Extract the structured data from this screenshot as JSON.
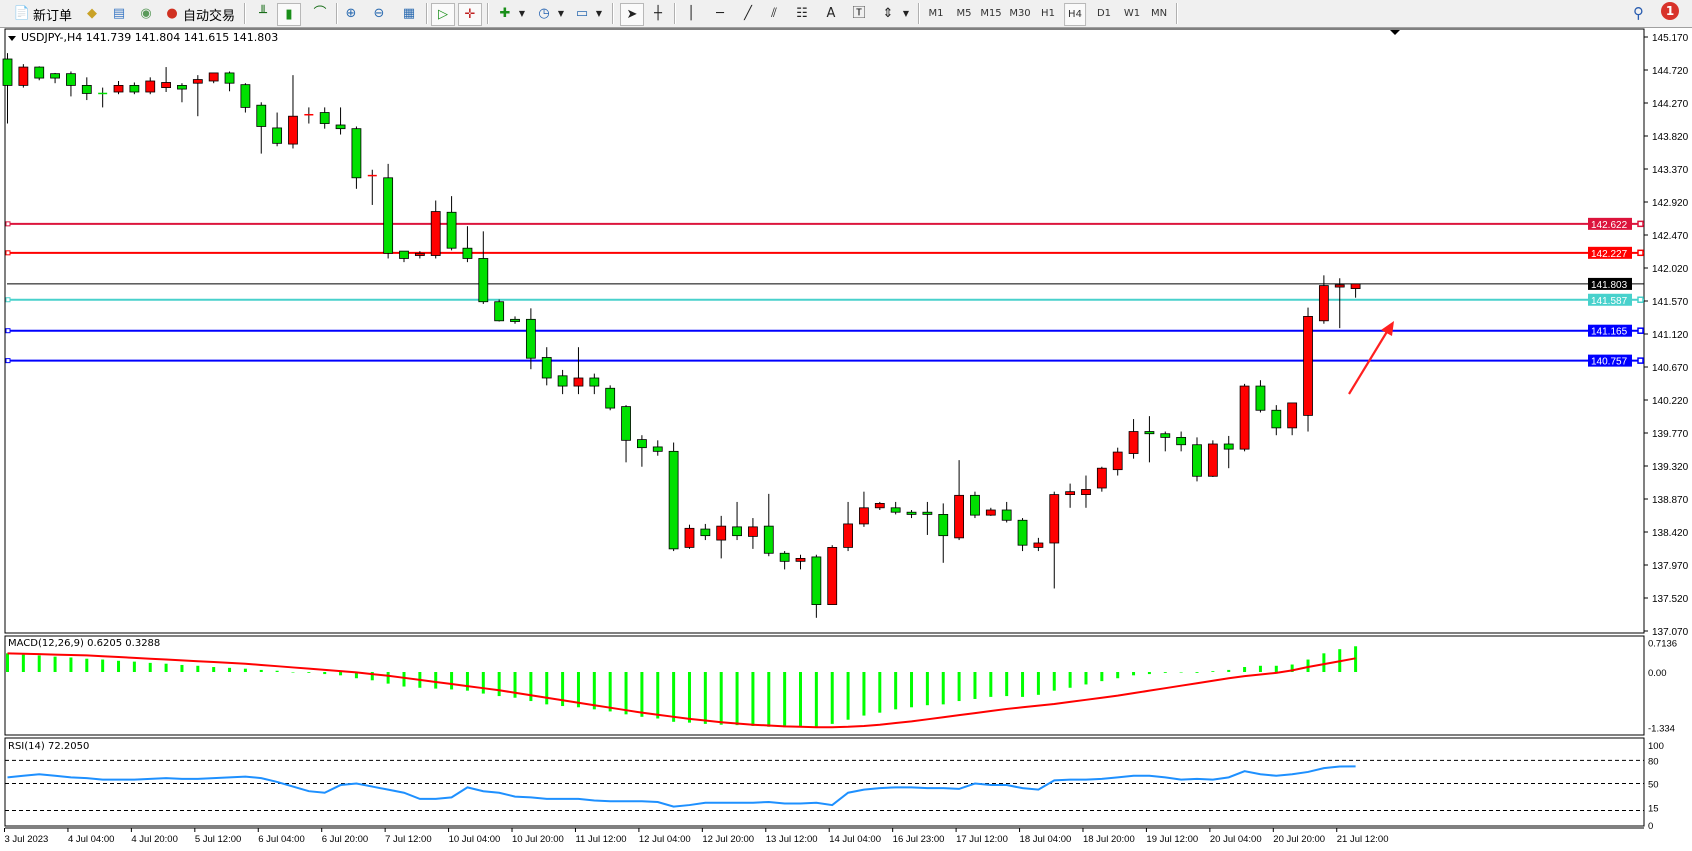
{
  "toolbar": {
    "new_order_label": "新订单",
    "auto_trading_label": "自动交易",
    "periods": [
      "M1",
      "M5",
      "M15",
      "M30",
      "H1",
      "H4",
      "D1",
      "W1",
      "MN"
    ],
    "active_period": "H4",
    "notification_count": "1",
    "icons": [
      "new-order-icon",
      "market-watch-icon",
      "data-window-icon",
      "navigator-icon",
      "auto-trading-icon",
      "bar-chart-icon",
      "candlestick-chart-icon",
      "line-chart-icon",
      "zoom-in-icon",
      "zoom-out-icon",
      "tile-windows-icon",
      "chart-shift-icon",
      "auto-scroll-icon",
      "indicators-icon",
      "periods-icon",
      "templates-icon",
      "cursor-icon",
      "crosshair-icon",
      "vertical-line-icon",
      "horizontal-line-icon",
      "trendline-icon",
      "fibonacci-fan-icon",
      "fibonacci-retracement-icon",
      "text-icon",
      "text-label-icon",
      "arrows-icon",
      "search-icon",
      "notification-icon"
    ]
  },
  "chart_header": "USDJPY-,H4  141.739 141.804 141.615 141.803",
  "chart_data": {
    "type": "candlestick",
    "symbol": "USDJPY-",
    "timeframe": "H4",
    "bull_color": "#ff0000",
    "bear_color": "#00e000",
    "ohlc": [
      [
        144.87,
        144.95,
        143.99,
        144.51
      ],
      [
        144.51,
        144.8,
        144.48,
        144.76
      ],
      [
        144.76,
        144.77,
        144.58,
        144.61
      ],
      [
        144.67,
        144.68,
        144.54,
        144.61
      ],
      [
        144.67,
        144.7,
        144.36,
        144.51
      ],
      [
        144.51,
        144.62,
        144.31,
        144.4
      ],
      [
        144.4,
        144.48,
        144.21,
        144.39
      ],
      [
        144.42,
        144.57,
        144.39,
        144.51
      ],
      [
        144.51,
        144.55,
        144.39,
        144.42
      ],
      [
        144.42,
        144.62,
        144.39,
        144.57
      ],
      [
        144.48,
        144.76,
        144.42,
        144.55
      ],
      [
        144.51,
        144.54,
        144.28,
        144.46
      ],
      [
        144.54,
        144.65,
        144.09,
        144.59
      ],
      [
        144.57,
        144.68,
        144.54,
        144.68
      ],
      [
        144.68,
        144.7,
        144.43,
        144.54
      ],
      [
        144.52,
        144.54,
        144.14,
        144.21
      ],
      [
        144.24,
        144.28,
        143.58,
        143.95
      ],
      [
        143.93,
        144.14,
        143.68,
        143.72
      ],
      [
        143.71,
        144.65,
        143.65,
        144.09
      ],
      [
        144.09,
        144.21,
        143.99,
        144.11
      ],
      [
        144.14,
        144.21,
        143.92,
        143.99
      ],
      [
        143.97,
        144.21,
        143.84,
        143.92
      ],
      [
        143.92,
        143.95,
        143.1,
        143.25
      ],
      [
        143.27,
        143.36,
        142.88,
        143.28
      ],
      [
        143.25,
        143.44,
        142.15,
        142.22
      ],
      [
        142.25,
        142.25,
        142.1,
        142.15
      ],
      [
        142.19,
        142.25,
        142.15,
        142.22
      ],
      [
        142.19,
        142.94,
        142.15,
        142.79
      ],
      [
        142.78,
        143.0,
        142.26,
        142.29
      ],
      [
        142.29,
        142.59,
        142.1,
        142.15
      ],
      [
        142.15,
        142.52,
        141.53,
        141.56
      ],
      [
        141.56,
        141.59,
        141.29,
        141.3
      ],
      [
        141.32,
        141.36,
        141.26,
        141.29
      ],
      [
        141.32,
        141.47,
        140.64,
        140.79
      ],
      [
        140.8,
        140.94,
        140.42,
        140.52
      ],
      [
        140.55,
        140.63,
        140.3,
        140.41
      ],
      [
        140.41,
        140.94,
        140.3,
        140.52
      ],
      [
        140.52,
        140.58,
        140.3,
        140.41
      ],
      [
        140.38,
        140.42,
        140.08,
        140.11
      ],
      [
        140.13,
        140.15,
        139.37,
        139.67
      ],
      [
        139.68,
        139.74,
        139.31,
        139.57
      ],
      [
        139.58,
        139.67,
        139.46,
        139.52
      ],
      [
        139.52,
        139.64,
        138.16,
        138.19
      ],
      [
        138.21,
        138.52,
        138.19,
        138.47
      ],
      [
        138.46,
        138.53,
        138.31,
        138.37
      ],
      [
        138.31,
        138.64,
        138.06,
        138.5
      ],
      [
        138.49,
        138.83,
        138.31,
        138.37
      ],
      [
        138.36,
        138.61,
        138.19,
        138.49
      ],
      [
        138.5,
        138.94,
        138.09,
        138.13
      ],
      [
        138.13,
        138.16,
        137.91,
        138.02
      ],
      [
        138.02,
        138.11,
        137.91,
        138.06
      ],
      [
        138.08,
        138.11,
        137.25,
        137.43
      ],
      [
        137.43,
        138.24,
        137.43,
        138.21
      ],
      [
        138.21,
        138.83,
        138.16,
        138.53
      ],
      [
        138.53,
        138.97,
        138.49,
        138.75
      ],
      [
        138.75,
        138.83,
        138.72,
        138.81
      ],
      [
        138.75,
        138.83,
        138.66,
        138.69
      ],
      [
        138.69,
        138.72,
        138.61,
        138.66
      ],
      [
        138.69,
        138.83,
        138.38,
        138.66
      ],
      [
        138.66,
        138.81,
        138.0,
        138.37
      ],
      [
        138.34,
        139.4,
        138.31,
        138.92
      ],
      [
        138.92,
        138.97,
        138.61,
        138.65
      ],
      [
        138.65,
        138.75,
        138.64,
        138.72
      ],
      [
        138.72,
        138.83,
        138.55,
        138.58
      ],
      [
        138.58,
        138.61,
        138.16,
        138.24
      ],
      [
        138.21,
        138.34,
        138.16,
        138.27
      ],
      [
        138.27,
        138.97,
        137.65,
        138.93
      ],
      [
        138.93,
        139.08,
        138.75,
        138.97
      ],
      [
        138.93,
        139.19,
        138.75,
        139.0
      ],
      [
        139.02,
        139.31,
        138.97,
        139.29
      ],
      [
        139.27,
        139.57,
        139.19,
        139.51
      ],
      [
        139.49,
        139.96,
        139.42,
        139.79
      ],
      [
        139.79,
        140.0,
        139.37,
        139.76
      ],
      [
        139.76,
        139.79,
        139.52,
        139.71
      ],
      [
        139.71,
        139.79,
        139.52,
        139.61
      ],
      [
        139.61,
        139.71,
        139.11,
        139.18
      ],
      [
        139.18,
        139.67,
        139.17,
        139.62
      ],
      [
        139.62,
        139.73,
        139.29,
        139.55
      ],
      [
        139.55,
        140.44,
        139.52,
        140.41
      ],
      [
        140.41,
        140.49,
        140.05,
        140.08
      ],
      [
        140.08,
        140.15,
        139.74,
        139.84
      ],
      [
        139.84,
        140.18,
        139.74,
        140.18
      ],
      [
        140.01,
        141.48,
        139.79,
        141.36
      ],
      [
        141.3,
        141.92,
        141.26,
        141.78
      ],
      [
        141.76,
        141.88,
        141.2,
        141.79
      ],
      [
        141.739,
        141.804,
        141.615,
        141.803
      ]
    ],
    "x_labels": [
      "3 Jul 2023",
      "4 Jul 04:00",
      "4 Jul 20:00",
      "5 Jul 12:00",
      "6 Jul 04:00",
      "6 Jul 20:00",
      "7 Jul 12:00",
      "10 Jul 04:00",
      "10 Jul 20:00",
      "11 Jul 12:00",
      "12 Jul 04:00",
      "12 Jul 20:00",
      "13 Jul 12:00",
      "14 Jul 04:00",
      "16 Jul 23:00",
      "17 Jul 12:00",
      "18 Jul 04:00",
      "18 Jul 20:00",
      "19 Jul 12:00",
      "20 Jul 04:00",
      "20 Jul 20:00",
      "21 Jul 12:00"
    ],
    "y_ticks": [
      "145.170",
      "144.720",
      "144.270",
      "143.820",
      "143.370",
      "142.920",
      "142.470",
      "142.020",
      "141.570",
      "141.120",
      "140.670",
      "140.220",
      "139.770",
      "139.320",
      "138.870",
      "138.420",
      "137.970",
      "137.520",
      "137.070"
    ],
    "ylim": [
      137.07,
      145.17
    ],
    "hlines": [
      {
        "value": 142.622,
        "label": "142.622",
        "color": "#dc143c"
      },
      {
        "value": 142.227,
        "label": "142.227",
        "color": "#ff0000"
      },
      {
        "value": 141.803,
        "label": "141.803",
        "color": "#000000"
      },
      {
        "value": 141.587,
        "label": "141.587",
        "color": "#48d1cc"
      },
      {
        "value": 141.165,
        "label": "141.165",
        "color": "#0000ff"
      },
      {
        "value": 140.757,
        "label": "140.757",
        "color": "#0000ff"
      }
    ],
    "annotation_arrow_color": "#ff2020",
    "macd": {
      "label": "MACD(12,26,9) 0.6205 0.3288",
      "ticks": [
        "0.7136",
        "0.00",
        "-1.334"
      ],
      "tick_values": [
        0.7136,
        0,
        -1.334
      ],
      "hist_color": "#00ff00",
      "signal_color": "#ff0000",
      "hist": [
        0.45,
        0.42,
        0.4,
        0.37,
        0.35,
        0.32,
        0.3,
        0.27,
        0.25,
        0.22,
        0.2,
        0.17,
        0.15,
        0.12,
        0.1,
        0.08,
        0.05,
        0.03,
        0.0,
        -0.02,
        -0.05,
        -0.08,
        -0.15,
        -0.2,
        -0.28,
        -0.35,
        -0.38,
        -0.4,
        -0.42,
        -0.45,
        -0.52,
        -0.58,
        -0.62,
        -0.7,
        -0.78,
        -0.82,
        -0.85,
        -0.9,
        -0.95,
        -1.02,
        -1.08,
        -1.12,
        -1.2,
        -1.22,
        -1.25,
        -1.27,
        -1.28,
        -1.3,
        -1.32,
        -1.33,
        -1.3,
        -1.33,
        -1.25,
        -1.15,
        -1.05,
        -0.98,
        -0.9,
        -0.85,
        -0.8,
        -0.78,
        -0.7,
        -0.65,
        -0.6,
        -0.58,
        -0.6,
        -0.55,
        -0.45,
        -0.38,
        -0.3,
        -0.22,
        -0.15,
        -0.08,
        -0.05,
        -0.02,
        0.0,
        -0.02,
        0.02,
        0.05,
        0.12,
        0.15,
        0.15,
        0.18,
        0.3,
        0.45,
        0.55,
        0.62
      ],
      "signal": [
        0.45,
        0.44,
        0.43,
        0.42,
        0.41,
        0.4,
        0.38,
        0.36,
        0.34,
        0.32,
        0.3,
        0.28,
        0.26,
        0.24,
        0.22,
        0.2,
        0.17,
        0.14,
        0.11,
        0.08,
        0.05,
        0.02,
        -0.01,
        -0.05,
        -0.09,
        -0.14,
        -0.19,
        -0.24,
        -0.29,
        -0.34,
        -0.39,
        -0.44,
        -0.5,
        -0.56,
        -0.62,
        -0.68,
        -0.74,
        -0.8,
        -0.86,
        -0.92,
        -0.98,
        -1.03,
        -1.08,
        -1.13,
        -1.17,
        -1.21,
        -1.24,
        -1.27,
        -1.29,
        -1.31,
        -1.32,
        -1.33,
        -1.33,
        -1.32,
        -1.3,
        -1.27,
        -1.23,
        -1.19,
        -1.14,
        -1.09,
        -1.04,
        -0.99,
        -0.94,
        -0.89,
        -0.85,
        -0.81,
        -0.77,
        -0.72,
        -0.67,
        -0.62,
        -0.57,
        -0.51,
        -0.45,
        -0.39,
        -0.33,
        -0.27,
        -0.21,
        -0.15,
        -0.1,
        -0.06,
        -0.02,
        0.04,
        0.12,
        0.19,
        0.26,
        0.33
      ]
    },
    "rsi": {
      "label": "RSI(14) 72.2050",
      "ticks": [
        "100",
        "80",
        "50",
        "15",
        "0"
      ],
      "tick_values": [
        100,
        80,
        50,
        15,
        0
      ],
      "levels": [
        80,
        50,
        15
      ],
      "color": "#1e90ff",
      "values": [
        58,
        60,
        62,
        60,
        58,
        57,
        55,
        55,
        55,
        56,
        57,
        56,
        56,
        57,
        58,
        59,
        57,
        52,
        46,
        40,
        38,
        48,
        50,
        46,
        42,
        38,
        30,
        30,
        32,
        45,
        40,
        38,
        33,
        32,
        30,
        30,
        30,
        28,
        27,
        27,
        27,
        26,
        20,
        22,
        25,
        25,
        25,
        25,
        26,
        24,
        24,
        25,
        22,
        38,
        42,
        44,
        45,
        45,
        44,
        44,
        43,
        50,
        48,
        48,
        44,
        42,
        54,
        55,
        55,
        56,
        58,
        60,
        60,
        58,
        55,
        56,
        55,
        58,
        66,
        62,
        60,
        62,
        65,
        70,
        72,
        72.2
      ]
    }
  }
}
